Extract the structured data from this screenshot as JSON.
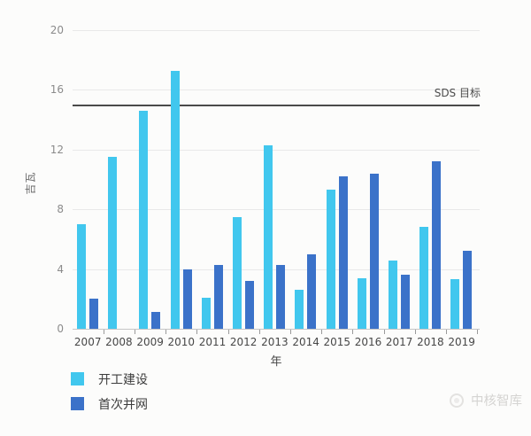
{
  "figure": {
    "watermark_text": "中核智库",
    "colors": {
      "series_construction": "#41c7ee",
      "series_grid_connection": "#3b72c9",
      "reference_line": "#4a4a4a",
      "grid": "#e9e9e9",
      "axis": "#c6c6c6"
    }
  },
  "chart_data": {
    "type": "bar",
    "title": "",
    "xlabel": "年",
    "ylabel": "吉瓦",
    "categories": [
      "2007",
      "2008",
      "2009",
      "2010",
      "2011",
      "2012",
      "2013",
      "2014",
      "2015",
      "2016",
      "2017",
      "2018",
      "2019"
    ],
    "series": [
      {
        "name": "开工建设",
        "color": "#41c7ee",
        "values": [
          7.0,
          11.5,
          14.6,
          17.3,
          2.1,
          7.5,
          12.3,
          2.6,
          9.3,
          3.4,
          4.6,
          6.8,
          3.3
        ]
      },
      {
        "name": "首次并网",
        "color": "#3b72c9",
        "values": [
          2.0,
          0,
          1.1,
          4.0,
          4.3,
          3.2,
          4.3,
          5.0,
          10.2,
          10.4,
          3.6,
          11.2,
          5.2
        ]
      }
    ],
    "ylim": [
      0,
      20
    ],
    "yticks": [
      0,
      4,
      8,
      12,
      16,
      20
    ],
    "grid": true,
    "legend_position": "bottom-left",
    "reference_line": {
      "label": "SDS 目标",
      "value": 15
    }
  }
}
